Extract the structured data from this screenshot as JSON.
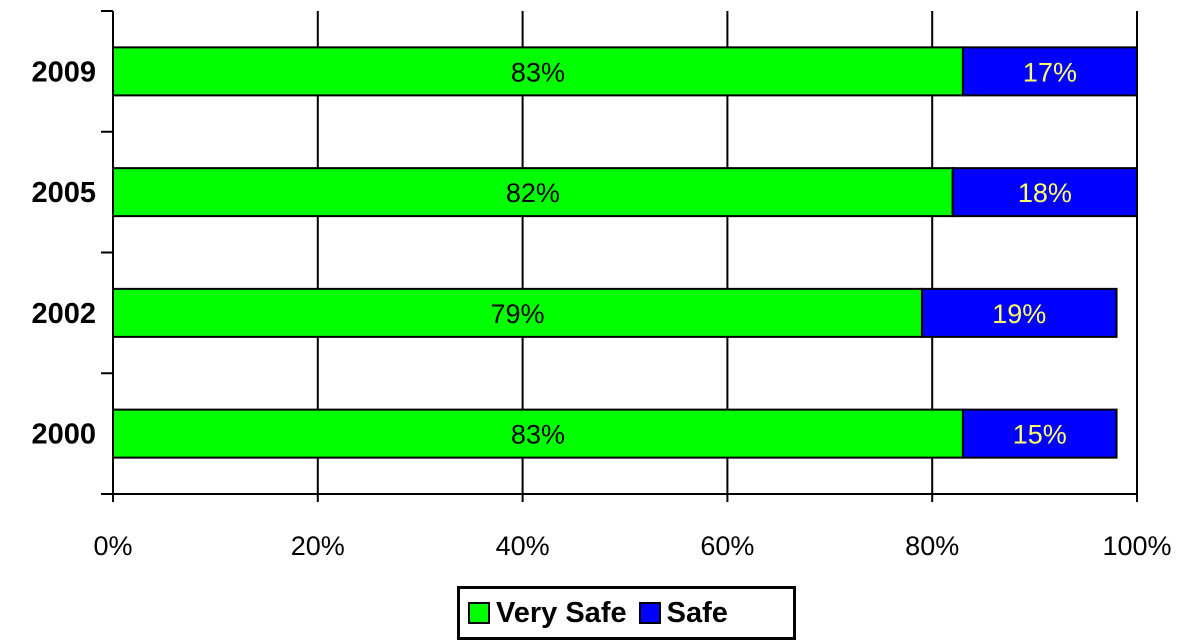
{
  "chart_data": {
    "type": "bar",
    "orientation": "horizontal",
    "stacked": true,
    "categories": [
      "2009",
      "2005",
      "2002",
      "2000"
    ],
    "series": [
      {
        "name": "Very Safe",
        "values": [
          83,
          82,
          79,
          83
        ],
        "labels": [
          "83%",
          "82%",
          "79%",
          "83%"
        ],
        "color": "#00ff00",
        "label_color": "#000000"
      },
      {
        "name": "Safe",
        "values": [
          17,
          18,
          19,
          15
        ],
        "labels": [
          "17%",
          "18%",
          "19%",
          "15%"
        ],
        "color": "#0000ff",
        "label_color": "#ffff66"
      }
    ],
    "xlim": [
      0,
      100
    ],
    "x_ticks": [
      "0%",
      "20%",
      "40%",
      "60%",
      "80%",
      "100%"
    ],
    "grid": "vertical",
    "legend_position": "bottom"
  }
}
